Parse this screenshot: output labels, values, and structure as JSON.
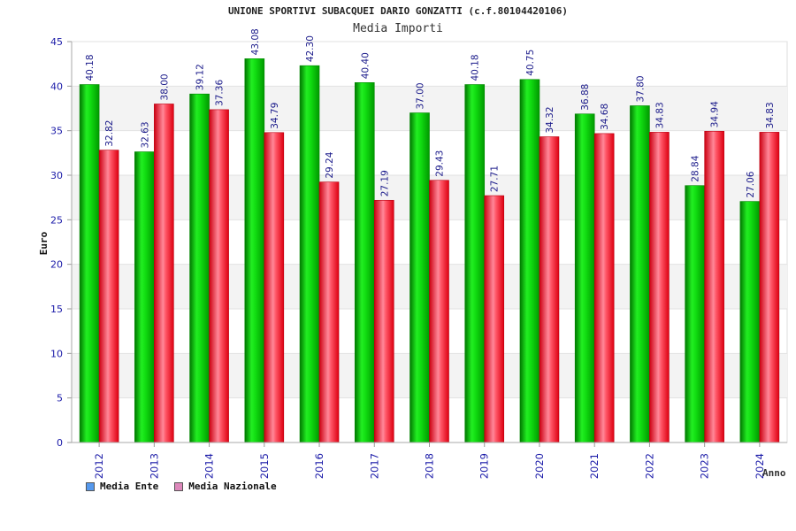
{
  "chart_data": {
    "type": "bar",
    "title": "UNIONE SPORTIVI SUBACQUEI DARIO GONZATTI (c.f.80104420106)",
    "subtitle": "Media Importi",
    "xlabel": "Anno",
    "ylabel": "Euro",
    "ylim": [
      0,
      45
    ],
    "yticks": [
      "0",
      "5",
      "10",
      "15",
      "20",
      "25",
      "30",
      "35",
      "40",
      "45"
    ],
    "categories": [
      "2012",
      "2013",
      "2014",
      "2015",
      "2016",
      "2017",
      "2018",
      "2019",
      "2020",
      "2021",
      "2022",
      "2023",
      "2024"
    ],
    "series": [
      {
        "name": "Media Ente",
        "color": "#00cc00",
        "values": [
          40.18,
          32.63,
          39.12,
          43.08,
          42.3,
          40.4,
          37.0,
          40.18,
          40.75,
          36.88,
          37.8,
          28.84,
          27.06
        ],
        "labels": [
          "40.18",
          "32.63",
          "39.12",
          "43.08",
          "42.30",
          "40.40",
          "37.00",
          "40.18",
          "40.75",
          "36.88",
          "37.80",
          "28.84",
          "27.06"
        ]
      },
      {
        "name": "Media Nazionale",
        "color": "#ee1122",
        "values": [
          32.82,
          38.0,
          37.36,
          34.79,
          29.24,
          27.19,
          29.43,
          27.71,
          34.32,
          34.68,
          34.83,
          34.94,
          34.83
        ],
        "labels": [
          "32.82",
          "38.00",
          "37.36",
          "34.79",
          "29.24",
          "27.19",
          "29.43",
          "27.71",
          "34.32",
          "34.68",
          "34.83",
          "34.94",
          "34.83"
        ]
      }
    ],
    "legend": {
      "position": "bottom-left",
      "items": [
        {
          "label": "Media Ente",
          "color": "#5599ee"
        },
        {
          "label": "Media Nazionale",
          "color": "#dd88bb"
        }
      ]
    },
    "grid": true
  }
}
